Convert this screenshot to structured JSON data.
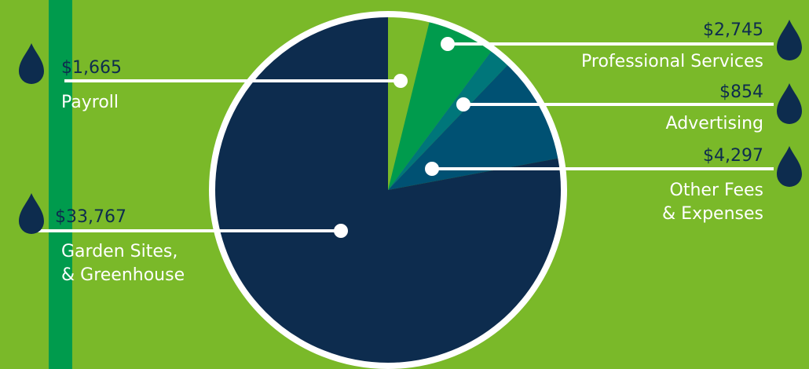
{
  "colors": {
    "background": "#7ab929",
    "bar": "#009b4d",
    "drop": "#0d2c4e",
    "ring": "#ffffff",
    "leader": "#ffffff"
  },
  "chart_data": {
    "type": "pie",
    "start": "12 o'clock",
    "direction": "clockwise",
    "slices": [
      {
        "label": "Payroll",
        "value": "$1,665",
        "amount": 1665,
        "color": "#7ab929"
      },
      {
        "label": "Professional Services",
        "value": "$2,745",
        "amount": 2745,
        "color": "#009b4d"
      },
      {
        "label": "Advertising",
        "value": "$854",
        "amount": 854,
        "color": "#00767a"
      },
      {
        "label": "Other Fees & Expenses",
        "value": "$4,297",
        "amount": 4297,
        "color": "#005173"
      },
      {
        "label": "Garden Sites, & Greenhouse",
        "value": "$33,767",
        "amount": 33767,
        "color": "#0d2c4e"
      }
    ]
  },
  "labels": {
    "payroll": {
      "amount": "$1,665",
      "lines": [
        "Payroll"
      ]
    },
    "garden": {
      "amount": "$33,767",
      "lines": [
        "Garden Sites,",
        "& Greenhouse"
      ]
    },
    "prof": {
      "amount": "$2,745",
      "lines": [
        "Professional Services"
      ]
    },
    "adv": {
      "amount": "$854",
      "lines": [
        "Advertising"
      ]
    },
    "other": {
      "amount": "$4,297",
      "lines": [
        "Other Fees",
        "& Expenses"
      ]
    }
  }
}
